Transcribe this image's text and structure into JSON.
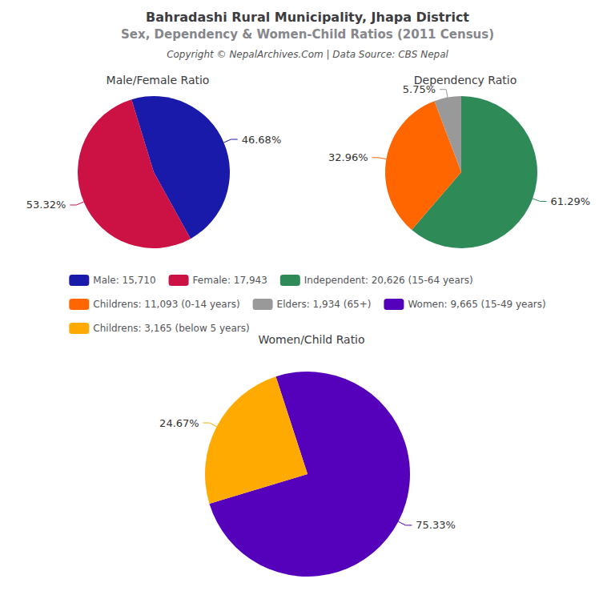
{
  "title": "Bahradashi Rural Municipality, Jhapa District",
  "subtitle": "Sex, Dependency & Women-Child Ratios (2011 Census)",
  "annotations": [
    "Copyright © NepalArchives.Com | Data Source: CBS Nepal"
  ],
  "legend": "center",
  "chart_data": [
    {
      "type": "pie",
      "title": "Male/Female Ratio",
      "categories": [
        "Male: 15,710",
        "Female: 17,943"
      ],
      "values": [
        46.68,
        53.32
      ],
      "value_labels": [
        "46.68%",
        "53.32%"
      ],
      "colors": [
        "#1a1aaa",
        "#cc1144"
      ],
      "data_labels": true
    },
    {
      "type": "pie",
      "title": "Dependency Ratio",
      "categories": [
        "Independent: 20,626 (15-64 years)",
        "Childrens: 11,093 (0-14 years)",
        "Elders: 1,934 (65+)"
      ],
      "values": [
        61.29,
        32.96,
        5.75
      ],
      "value_labels": [
        "61.29%",
        "32.96%",
        "5.75%"
      ],
      "colors": [
        "#2e8b57",
        "#ff6600",
        "#999999"
      ],
      "data_labels": true
    },
    {
      "type": "pie",
      "title": "Women/Child Ratio",
      "categories": [
        "Women: 9,665 (15-49 years)",
        "Childrens: 3,165 (below 5 years)"
      ],
      "values": [
        75.33,
        24.67
      ],
      "value_labels": [
        "75.33%",
        "24.67%"
      ],
      "colors": [
        "#5500bb",
        "#ffaa00"
      ],
      "data_labels": true
    }
  ]
}
